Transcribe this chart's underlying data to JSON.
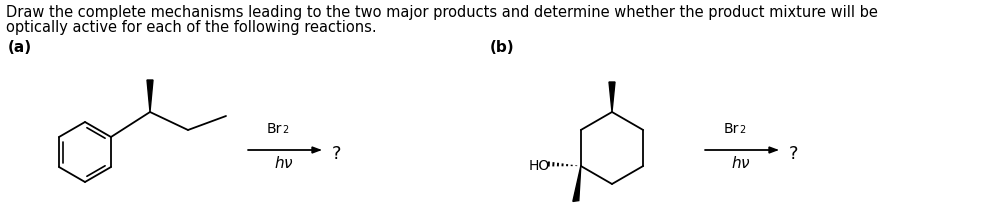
{
  "title_line1": "Draw the complete mechanisms leading to the two major products and determine whether the product mixture will be",
  "title_line2": "optically active for each of the following reactions.",
  "label_a": "(a)",
  "label_b": "(b)",
  "bg_color": "#ffffff",
  "text_color": "#000000",
  "fontsize_body": 10.5,
  "fontsize_label": 11,
  "fontsize_chem": 10,
  "fontsize_q": 13
}
